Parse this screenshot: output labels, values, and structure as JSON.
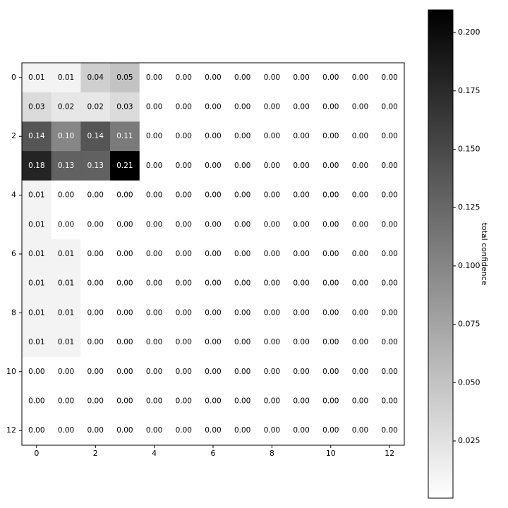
{
  "chart_data": {
    "type": "heatmap",
    "colorbar_label": "total confidence",
    "colormap": "gray_r",
    "xlim": [
      -0.5,
      12.5
    ],
    "ylim": [
      12.5,
      -0.5
    ],
    "xticks": [
      0,
      2,
      4,
      6,
      8,
      10,
      12
    ],
    "yticks": [
      0,
      2,
      4,
      6,
      8,
      10,
      12
    ],
    "clim": [
      0.0005,
      0.2097
    ],
    "cticks": [
      0.025,
      {
        "value": 0.05,
        "label": "0.050"
      },
      0.075,
      {
        "value": 0.1,
        "label": "0.100"
      },
      0.125,
      {
        "value": 0.15,
        "label": "0.150"
      },
      0.175,
      {
        "value": 0.2,
        "label": "0.200"
      }
    ],
    "values": [
      [
        0.01,
        0.01,
        0.04,
        0.05,
        0,
        0,
        0,
        0,
        0,
        0,
        0,
        0,
        0
      ],
      [
        0.03,
        0.02,
        0.02,
        0.03,
        0,
        0,
        0,
        0,
        0,
        0,
        0,
        0,
        0
      ],
      [
        0.14,
        0.1,
        0.14,
        0.11,
        0,
        0,
        0,
        0,
        0,
        0,
        0,
        0,
        0
      ],
      [
        0.18,
        0.13,
        0.13,
        0.21,
        0,
        0,
        0,
        0,
        0,
        0,
        0,
        0,
        0
      ],
      [
        0.01,
        0,
        0,
        0,
        0,
        0,
        0,
        0,
        0,
        0,
        0,
        0,
        0
      ],
      [
        0.01,
        0,
        0,
        0,
        0,
        0,
        0,
        0,
        0,
        0,
        0,
        0,
        0
      ],
      [
        0.01,
        0.01,
        0,
        0,
        0,
        0,
        0,
        0,
        0,
        0,
        0,
        0,
        0
      ],
      [
        0.01,
        0.01,
        0,
        0,
        0,
        0,
        0,
        0,
        0,
        0,
        0,
        0,
        0
      ],
      [
        0.01,
        0.01,
        0,
        0,
        0,
        0,
        0,
        0,
        0,
        0,
        0,
        0,
        0
      ],
      [
        0.01,
        0.01,
        0,
        0,
        0,
        0,
        0,
        0,
        0,
        0,
        0,
        0,
        0
      ],
      [
        0,
        0,
        0,
        0,
        0,
        0,
        0,
        0,
        0,
        0,
        0,
        0,
        0
      ],
      [
        0,
        0,
        0,
        0,
        0,
        0,
        0,
        0,
        0,
        0,
        0,
        0,
        0
      ],
      [
        0,
        0,
        0,
        0,
        0,
        0,
        0,
        0,
        0,
        0,
        0,
        0,
        0
      ]
    ],
    "value_labels": [
      [
        "0.01",
        "0.01",
        "0.04",
        "0.05",
        "0.00",
        "0.00",
        "0.00",
        "0.00",
        "0.00",
        "0.00",
        "0.00",
        "0.00",
        "0.00"
      ],
      [
        "0.03",
        "0.02",
        "0.02",
        "0.03",
        "0.00",
        "0.00",
        "0.00",
        "0.00",
        "0.00",
        "0.00",
        "0.00",
        "0.00",
        "0.00"
      ],
      [
        "0.14",
        "0.10",
        "0.14",
        "0.11",
        "0.00",
        "0.00",
        "0.00",
        "0.00",
        "0.00",
        "0.00",
        "0.00",
        "0.00",
        "0.00"
      ],
      [
        "0.18",
        "0.13",
        "0.13",
        "0.21",
        "0.00",
        "0.00",
        "0.00",
        "0.00",
        "0.00",
        "0.00",
        "0.00",
        "0.00",
        "0.00"
      ],
      [
        "0.01",
        "0.00",
        "0.00",
        "0.00",
        "0.00",
        "0.00",
        "0.00",
        "0.00",
        "0.00",
        "0.00",
        "0.00",
        "0.00",
        "0.00"
      ],
      [
        "0.01",
        "0.00",
        "0.00",
        "0.00",
        "0.00",
        "0.00",
        "0.00",
        "0.00",
        "0.00",
        "0.00",
        "0.00",
        "0.00",
        "0.00"
      ],
      [
        "0.01",
        "0.01",
        "0.00",
        "0.00",
        "0.00",
        "0.00",
        "0.00",
        "0.00",
        "0.00",
        "0.00",
        "0.00",
        "0.00",
        "0.00"
      ],
      [
        "0.01",
        "0.01",
        "0.00",
        "0.00",
        "0.00",
        "0.00",
        "0.00",
        "0.00",
        "0.00",
        "0.00",
        "0.00",
        "0.00",
        "0.00"
      ],
      [
        "0.01",
        "0.01",
        "0.00",
        "0.00",
        "0.00",
        "0.00",
        "0.00",
        "0.00",
        "0.00",
        "0.00",
        "0.00",
        "0.00",
        "0.00"
      ],
      [
        "0.01",
        "0.01",
        "0.00",
        "0.00",
        "0.00",
        "0.00",
        "0.00",
        "0.00",
        "0.00",
        "0.00",
        "0.00",
        "0.00",
        "0.00"
      ],
      [
        "0.00",
        "0.00",
        "0.00",
        "0.00",
        "0.00",
        "0.00",
        "0.00",
        "0.00",
        "0.00",
        "0.00",
        "0.00",
        "0.00",
        "0.00"
      ],
      [
        "0.00",
        "0.00",
        "0.00",
        "0.00",
        "0.00",
        "0.00",
        "0.00",
        "0.00",
        "0.00",
        "0.00",
        "0.00",
        "0.00",
        "0.00"
      ],
      [
        "0.00",
        "0.00",
        "0.00",
        "0.00",
        "0.00",
        "0.00",
        "0.00",
        "0.00",
        "0.00",
        "0.00",
        "0.00",
        "0.00",
        "0.00"
      ]
    ]
  }
}
